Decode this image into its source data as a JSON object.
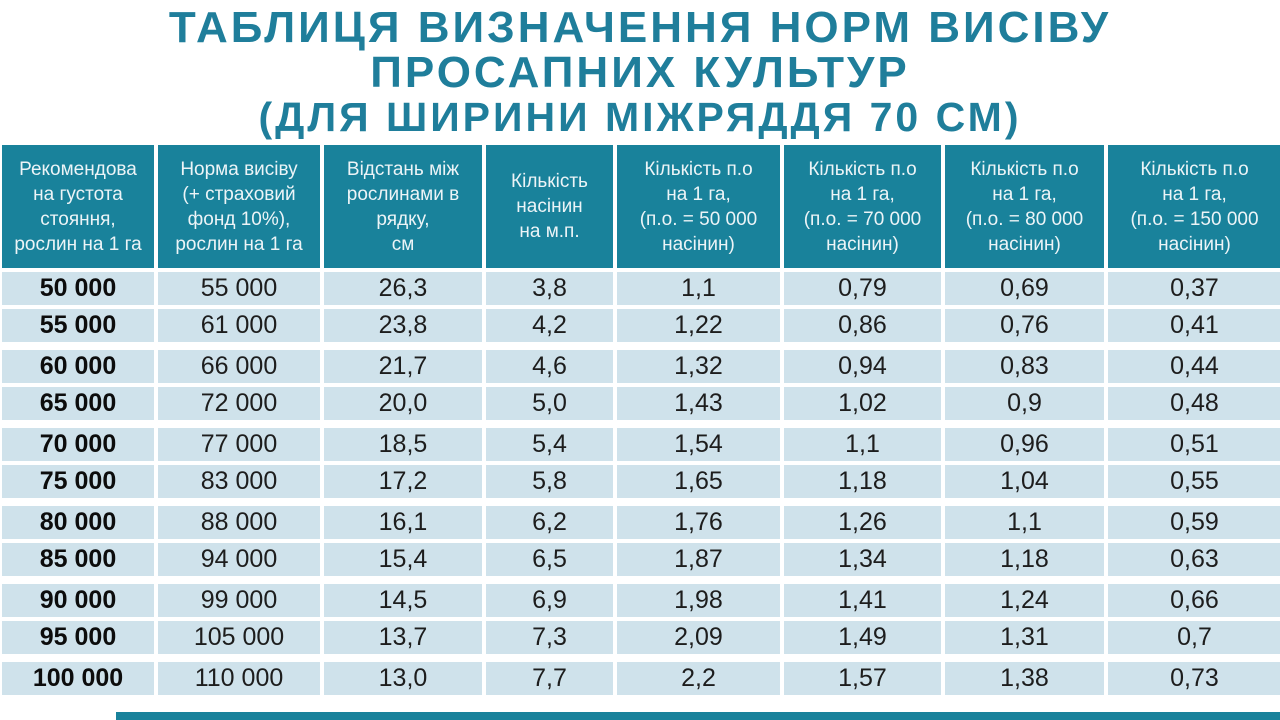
{
  "title": {
    "line1": "ТАБЛИЦЯ ВИЗНАЧЕННЯ НОРМ ВИСІВУ",
    "line2": "ПРОСАПНИХ КУЛЬТУР",
    "line3": "(ДЛЯ ШИРИНИ МІЖРЯДДЯ 70 СМ)"
  },
  "colors": {
    "accent": "#1f7e9b",
    "header_bg": "#19829b",
    "header_text": "#ecf4f7",
    "row_bg": "#cfe2eb",
    "row_text": "#1d1d1d"
  },
  "chart_data": {
    "type": "table",
    "title": "ТАБЛИЦЯ ВИЗНАЧЕННЯ НОРМ ВИСІВУ ПРОСАПНИХ КУЛЬТУР (ДЛЯ ШИРИНИ МІЖРЯДДЯ 70 СМ)",
    "columns": [
      "Рекомендована густота стояння, рослин на 1 га",
      "Норма висіву (+ страховий фонд 10%), рослин на 1 га",
      "Відстань між рослинами в рядку, см",
      "Кількість насінин на м.п.",
      "Кількість п.о на 1 га, (п.о. = 50 000 насінин)",
      "Кількість п.о на 1 га, (п.о. = 70 000 насінин)",
      "Кількість п.о на 1 га, (п.о. = 80 000 насінин)",
      "Кількість п.о на 1 га, (п.о. = 150 000 насінин)"
    ],
    "columns_display": [
      "Рекомендова\nна густота\nстояння,\nрослин на 1 га",
      "Норма висіву\n(+ страховий\nфонд 10%),\nрослин на 1 га",
      "Відстань між\nрослинами в\nрядку,\nсм",
      "Кількість\nнасінин\nна м.п.",
      "Кількість п.о\nна 1 га,\n(п.о. = 50 000\nнасінин)",
      "Кількість п.о\nна 1 га,\n(п.о. = 70 000\nнасінин)",
      "Кількість п.о\nна 1 га,\n(п.о. = 80 000\nнасінин)",
      "Кількість п.о\nна 1 га,\n(п.о. = 150 000\nнасінин)"
    ],
    "rows": [
      [
        "50 000",
        "55 000",
        "26,3",
        "3,8",
        "1,1",
        "0,79",
        "0,69",
        "0,37"
      ],
      [
        "55 000",
        "61 000",
        "23,8",
        "4,2",
        "1,22",
        "0,86",
        "0,76",
        "0,41"
      ],
      [
        "60 000",
        "66 000",
        "21,7",
        "4,6",
        "1,32",
        "0,94",
        "0,83",
        "0,44"
      ],
      [
        "65 000",
        "72 000",
        "20,0",
        "5,0",
        "1,43",
        "1,02",
        "0,9",
        "0,48"
      ],
      [
        "70 000",
        "77 000",
        "18,5",
        "5,4",
        "1,54",
        "1,1",
        "0,96",
        "0,51"
      ],
      [
        "75 000",
        "83 000",
        "17,2",
        "5,8",
        "1,65",
        "1,18",
        "1,04",
        "0,55"
      ],
      [
        "80 000",
        "88 000",
        "16,1",
        "6,2",
        "1,76",
        "1,26",
        "1,1",
        "0,59"
      ],
      [
        "85 000",
        "94 000",
        "15,4",
        "6,5",
        "1,87",
        "1,34",
        "1,18",
        "0,63"
      ],
      [
        "90 000",
        "99 000",
        "14,5",
        "6,9",
        "1,98",
        "1,41",
        "1,24",
        "0,66"
      ],
      [
        "95 000",
        "105 000",
        "13,7",
        "7,3",
        "2,09",
        "1,49",
        "1,31",
        "0,7"
      ],
      [
        "100 000",
        "110 000",
        "13,0",
        "7,7",
        "2,2",
        "1,57",
        "1,38",
        "0,73"
      ]
    ]
  }
}
